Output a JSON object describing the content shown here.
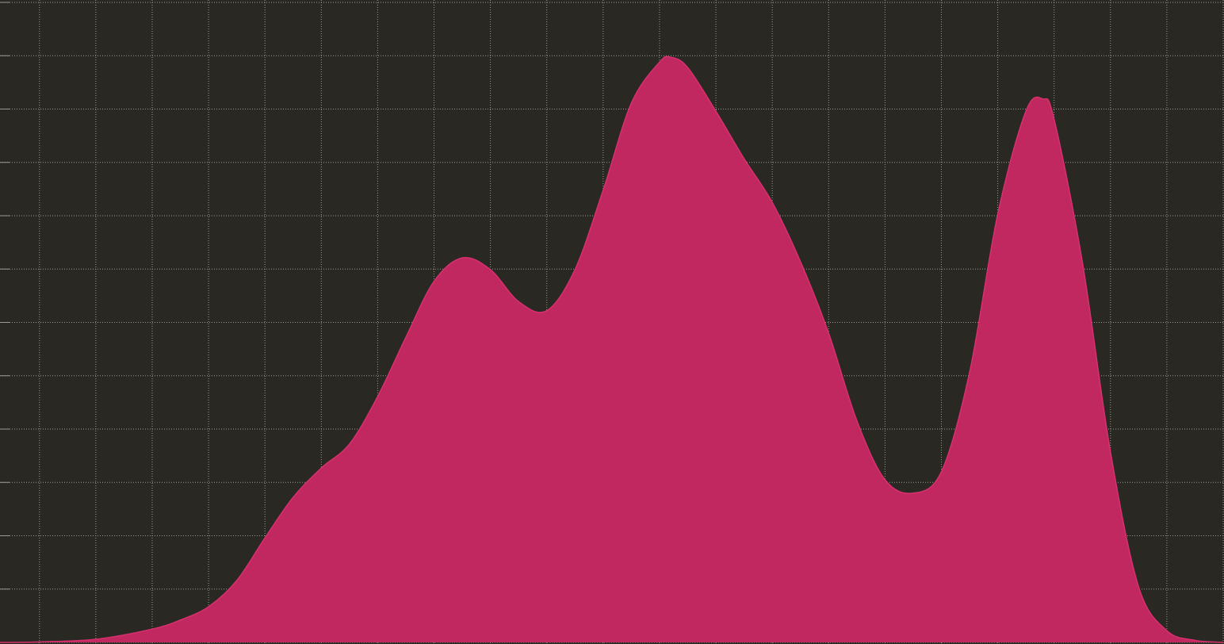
{
  "chart_data": {
    "type": "area",
    "x": [
      -0.7,
      0,
      1,
      2,
      2.5,
      3,
      3.5,
      4,
      4.5,
      5,
      5.5,
      6,
      6.5,
      7,
      7.5,
      8,
      8.5,
      9,
      9.5,
      10,
      10.5,
      11,
      11.2,
      11.5,
      12,
      12.5,
      13,
      13.5,
      14,
      14.5,
      15,
      15.5,
      16,
      16.5,
      17,
      17.5,
      17.8,
      18,
      18.5,
      19,
      19.5,
      20,
      20.5,
      21
    ],
    "values": [
      0,
      0.01,
      0.06,
      0.25,
      0.42,
      0.67,
      1.16,
      1.96,
      2.72,
      3.27,
      3.72,
      4.61,
      5.72,
      6.77,
      7.21,
      6.99,
      6.39,
      6.22,
      6.99,
      8.48,
      10.11,
      10.88,
      10.97,
      10.78,
      9.96,
      9.07,
      8.25,
      7.14,
      5.8,
      4.16,
      3.05,
      2.8,
      3.2,
      5.06,
      8.03,
      9.96,
      10.19,
      9.81,
      7.14,
      3.57,
      1.04,
      0.22,
      0.04,
      0
    ],
    "color": "#c0285f",
    "line_color": "#d8306e",
    "xlim": [
      -0.7,
      21
    ],
    "xticks": [
      0,
      1,
      2,
      3,
      4,
      5,
      6,
      7,
      8,
      9,
      10,
      11,
      12,
      13,
      14,
      15,
      16,
      17,
      18,
      19,
      20,
      21
    ],
    "ylim": [
      0,
      12
    ],
    "yticks": [
      0,
      1,
      2,
      3,
      4,
      5,
      6,
      7,
      8,
      9,
      10,
      11,
      12
    ],
    "grid": true
  }
}
